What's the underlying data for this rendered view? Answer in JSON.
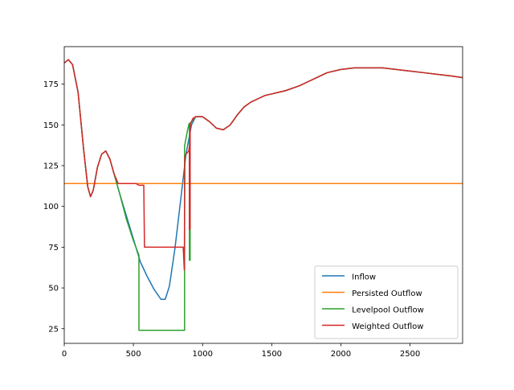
{
  "chart_data": {
    "type": "line",
    "title": "",
    "xlabel": "",
    "ylabel": "",
    "xlim": [
      0,
      2880
    ],
    "ylim": [
      16,
      198
    ],
    "xticks": [
      0,
      500,
      1000,
      1500,
      2000,
      2500
    ],
    "yticks": [
      25,
      50,
      75,
      100,
      125,
      150,
      175
    ],
    "xtick_labels": [
      "0",
      "500",
      "1000",
      "1500",
      "2000",
      "2500"
    ],
    "ytick_labels": [
      "25",
      "50",
      "75",
      "100",
      "125",
      "150",
      "175"
    ],
    "grid": false,
    "legend_position": "lower right",
    "series": [
      {
        "name": " Inflow",
        "color": "#1f77b4",
        "points": [
          [
            0,
            188
          ],
          [
            30,
            190
          ],
          [
            60,
            187
          ],
          [
            100,
            170
          ],
          [
            140,
            135
          ],
          [
            170,
            112
          ],
          [
            190,
            106
          ],
          [
            210,
            110
          ],
          [
            240,
            124
          ],
          [
            270,
            132
          ],
          [
            300,
            134
          ],
          [
            330,
            129
          ],
          [
            360,
            120
          ],
          [
            400,
            108
          ],
          [
            450,
            94
          ],
          [
            500,
            80
          ],
          [
            550,
            66
          ],
          [
            600,
            57
          ],
          [
            650,
            49
          ],
          [
            700,
            43
          ],
          [
            730,
            43
          ],
          [
            760,
            51
          ],
          [
            800,
            74
          ],
          [
            850,
            110
          ],
          [
            880,
            132
          ],
          [
            920,
            150
          ],
          [
            950,
            155
          ],
          [
            1000,
            155
          ],
          [
            1050,
            152
          ],
          [
            1100,
            148
          ],
          [
            1150,
            147
          ],
          [
            1200,
            150
          ],
          [
            1250,
            156
          ],
          [
            1300,
            161
          ],
          [
            1350,
            164
          ],
          [
            1400,
            166
          ],
          [
            1450,
            168
          ],
          [
            1500,
            169
          ],
          [
            1550,
            170
          ],
          [
            1600,
            171
          ],
          [
            1700,
            174
          ],
          [
            1800,
            178
          ],
          [
            1900,
            182
          ],
          [
            2000,
            184
          ],
          [
            2100,
            185
          ],
          [
            2200,
            185
          ],
          [
            2300,
            185
          ],
          [
            2400,
            184
          ],
          [
            2500,
            183
          ],
          [
            2600,
            182
          ],
          [
            2700,
            181
          ],
          [
            2800,
            180
          ],
          [
            2880,
            179
          ]
        ]
      },
      {
        "name": " Persisted Outflow",
        "color": "#ff7f0e",
        "points": [
          [
            0,
            114
          ],
          [
            2880,
            114
          ]
        ]
      },
      {
        "name": " Levelpool Outflow",
        "color": "#2ca02c",
        "points": [
          [
            0,
            188
          ],
          [
            30,
            190
          ],
          [
            60,
            187
          ],
          [
            100,
            170
          ],
          [
            140,
            135
          ],
          [
            170,
            112
          ],
          [
            190,
            106
          ],
          [
            210,
            110
          ],
          [
            240,
            124
          ],
          [
            270,
            132
          ],
          [
            300,
            134
          ],
          [
            330,
            129
          ],
          [
            360,
            120
          ],
          [
            400,
            108
          ],
          [
            450,
            92
          ],
          [
            500,
            79
          ],
          [
            540,
            70
          ],
          [
            540,
            24
          ],
          [
            870,
            24
          ],
          [
            870,
            137
          ],
          [
            885,
            144
          ],
          [
            900,
            150
          ],
          [
            905,
            151
          ],
          [
            905,
            67
          ],
          [
            910,
            67
          ],
          [
            910,
            151
          ],
          [
            950,
            155
          ],
          [
            1000,
            155
          ],
          [
            1050,
            152
          ],
          [
            1100,
            148
          ],
          [
            1150,
            147
          ],
          [
            1200,
            150
          ],
          [
            1250,
            156
          ],
          [
            1300,
            161
          ],
          [
            1350,
            164
          ],
          [
            1400,
            166
          ],
          [
            1450,
            168
          ],
          [
            1500,
            169
          ],
          [
            1550,
            170
          ],
          [
            1600,
            171
          ],
          [
            1700,
            174
          ],
          [
            1800,
            178
          ],
          [
            1900,
            182
          ],
          [
            2000,
            184
          ],
          [
            2100,
            185
          ],
          [
            2200,
            185
          ],
          [
            2300,
            185
          ],
          [
            2400,
            184
          ],
          [
            2500,
            183
          ],
          [
            2600,
            182
          ],
          [
            2700,
            181
          ],
          [
            2800,
            180
          ],
          [
            2880,
            179
          ]
        ]
      },
      {
        "name": " Weighted Outflow",
        "color": "#d62728",
        "points": [
          [
            0,
            188
          ],
          [
            30,
            190
          ],
          [
            60,
            187
          ],
          [
            100,
            170
          ],
          [
            140,
            135
          ],
          [
            170,
            112
          ],
          [
            190,
            106
          ],
          [
            210,
            110
          ],
          [
            240,
            124
          ],
          [
            270,
            132
          ],
          [
            300,
            134
          ],
          [
            330,
            129
          ],
          [
            360,
            120
          ],
          [
            390,
            114
          ],
          [
            450,
            114
          ],
          [
            520,
            114
          ],
          [
            540,
            113
          ],
          [
            575,
            113
          ],
          [
            580,
            75
          ],
          [
            860,
            75
          ],
          [
            868,
            61
          ],
          [
            872,
            130
          ],
          [
            880,
            132
          ],
          [
            900,
            134
          ],
          [
            905,
            137
          ],
          [
            905,
            86
          ],
          [
            910,
            86
          ],
          [
            910,
            150
          ],
          [
            930,
            154
          ],
          [
            950,
            155
          ],
          [
            1000,
            155
          ],
          [
            1050,
            152
          ],
          [
            1100,
            148
          ],
          [
            1150,
            147
          ],
          [
            1200,
            150
          ],
          [
            1250,
            156
          ],
          [
            1300,
            161
          ],
          [
            1350,
            164
          ],
          [
            1400,
            166
          ],
          [
            1450,
            168
          ],
          [
            1500,
            169
          ],
          [
            1550,
            170
          ],
          [
            1600,
            171
          ],
          [
            1700,
            174
          ],
          [
            1800,
            178
          ],
          [
            1900,
            182
          ],
          [
            2000,
            184
          ],
          [
            2100,
            185
          ],
          [
            2200,
            185
          ],
          [
            2300,
            185
          ],
          [
            2400,
            184
          ],
          [
            2500,
            183
          ],
          [
            2600,
            182
          ],
          [
            2700,
            181
          ],
          [
            2800,
            180
          ],
          [
            2880,
            179
          ]
        ]
      }
    ]
  }
}
